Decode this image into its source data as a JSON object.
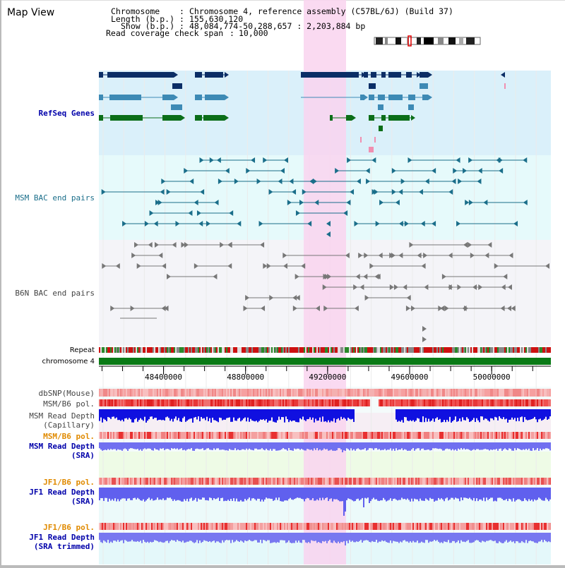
{
  "view_title": "Map View",
  "header": {
    "chromosome_key": "Chromosome",
    "chromosome_value": "Chromosome 4, reference assembly (C57BL/6J) (Build 37)",
    "length_key": "Length (b.p.)",
    "length_value": "155,630,120",
    "show_key": "Show (b.p.)",
    "show_value": "48,084,774-50,288,657 : 2,203,884 bp",
    "read_key": "Read coverage check span",
    "read_value": "10,000"
  },
  "tracks": {
    "refseq": "RefSeq Genes",
    "msm_bac": "MSM BAC end pairs",
    "b6n_bac": "B6N BAC end pairs",
    "repeat": "Repeat",
    "chromosome": "chromosome 4",
    "dbsnp": "dbSNP(Mouse)",
    "msm_b6_pol_1": "MSM/B6 pol.",
    "msm_depth_cap_1": "MSM Read Depth",
    "msm_depth_cap_2": "(Capillary)",
    "msm_b6_pol_2": "MSM/B6 pol.",
    "msm_depth_sra_1": "MSM Read Depth",
    "msm_depth_sra_2": "(SRA)",
    "jf1_b6_pol_1": "JF1/B6 pol.",
    "jf1_depth_sra_1": "JF1 Read Depth",
    "jf1_depth_sra_2": "(SRA)",
    "jf1_b6_pol_2": "JF1/B6 pol.",
    "jf1_depth_trim_1": "JF1 Read Depth",
    "jf1_depth_trim_2": "(SRA trimmed)"
  },
  "axis": {
    "ticks": [
      "48400000",
      "48800000",
      "49200000",
      "49600000",
      "50000000"
    ]
  },
  "colors": {
    "refseq_dark": "#0b2e66",
    "refseq_mid": "#3d8ab5",
    "refseq_green": "#0b6e18",
    "msm_bac": "#1a6e8a",
    "b6n_bac": "#777777",
    "highlight": "#f9d3ee",
    "label_blue": "#0000aa",
    "label_orange": "#e08a00",
    "depth_blue": "#1010e0",
    "depth_violet": "#7070f0",
    "pol_red": "#e02020",
    "chrom_green": "#0a7a16"
  }
}
